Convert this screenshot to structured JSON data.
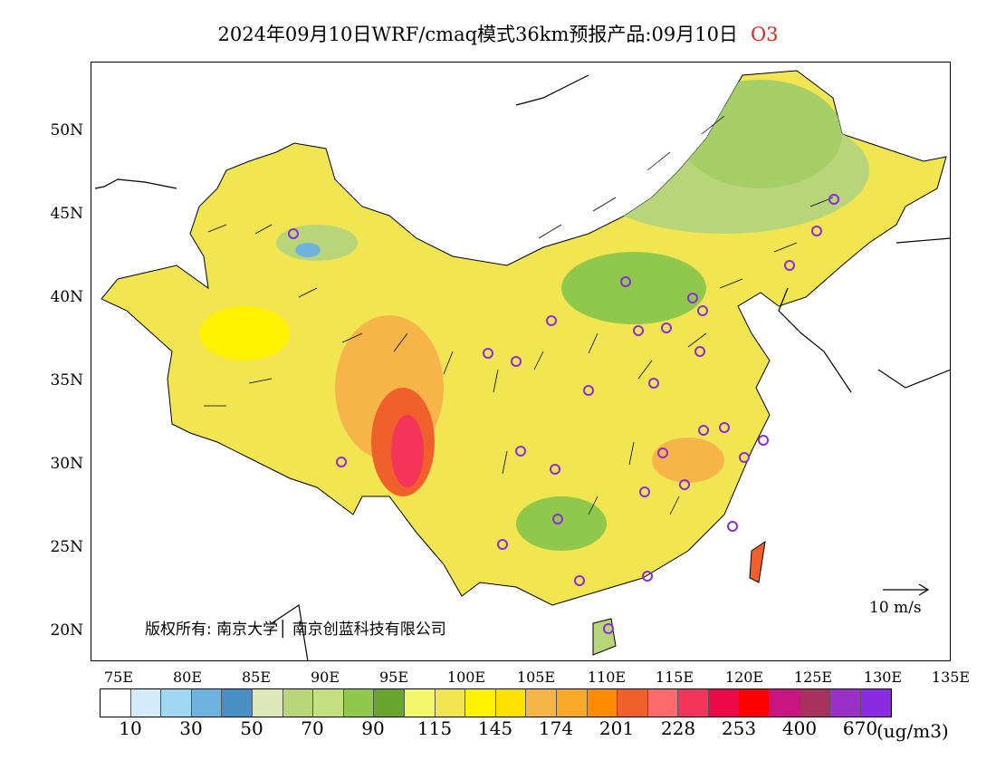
{
  "title": {
    "text": "2024年09月10日WRF/cmaq模式36km预报产品:09月10日",
    "pollutant": "O3",
    "pollutant_color": "#e0241f"
  },
  "map": {
    "lat_labels": [
      "50N",
      "45N",
      "40N",
      "35N",
      "30N",
      "25N",
      "20N"
    ],
    "lon_labels": [
      "75E",
      "80E",
      "85E",
      "90E",
      "95E",
      "100E",
      "105E",
      "110E",
      "115E",
      "120E",
      "125E",
      "130E",
      "135E"
    ],
    "copyright": "版权所有: 南京大学│ 南京创蓝科技有限公司",
    "wind_scale_label": "10 m/s",
    "station_marker_color": "#8a2be2"
  },
  "legend": {
    "colors": [
      "#ffffff",
      "#d4ecf9",
      "#9fd7f2",
      "#6db3dd",
      "#4a8fc4",
      "#dde8b8",
      "#b8d57a",
      "#c4e081",
      "#8fc84b",
      "#6aa62f",
      "#f2f86a",
      "#f2e552",
      "#fff200",
      "#ffe100",
      "#f7b448",
      "#f8a92a",
      "#ff8c00",
      "#f0602c",
      "#ff6a6a",
      "#f5345a",
      "#ee0a4a",
      "#ff0000",
      "#c8157f",
      "#a8305c",
      "#9b30c8",
      "#8a2be2"
    ],
    "labels": [
      "10",
      "30",
      "50",
      "70",
      "90",
      "115",
      "145",
      "174",
      "201",
      "228",
      "253",
      "400",
      "670"
    ],
    "unit": "(ug/m3)"
  }
}
